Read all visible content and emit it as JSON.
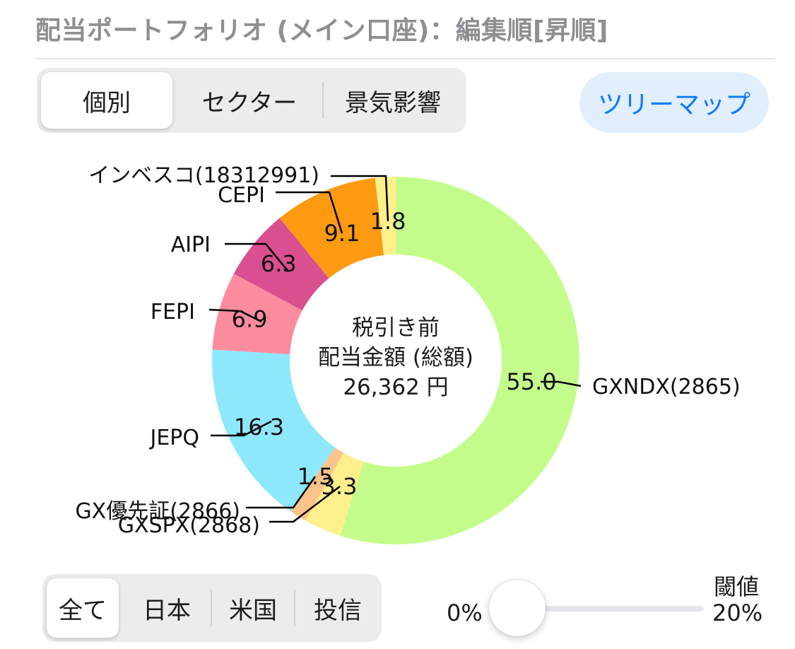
{
  "header": {
    "title": "配当ポートフォリオ (メイン口座)：編集順[昇順]"
  },
  "view_tabs": [
    {
      "label": "個別",
      "selected": true
    },
    {
      "label": "セクター",
      "selected": false
    },
    {
      "label": "景気影響",
      "selected": false
    }
  ],
  "treemap_button": {
    "label": "ツリーマップ"
  },
  "center_label": {
    "line1": "税引き前",
    "line2": "配当金額 (総額)",
    "line3": "26,362 円"
  },
  "chart_data": {
    "type": "pie",
    "donut": true,
    "start": "top, clockwise",
    "slices": [
      {
        "label": "GXNDX(2865)",
        "value": 55.0,
        "value_text": "55.0",
        "color": "#c4fc8c"
      },
      {
        "label": "GXSPX(2868)",
        "value": 3.3,
        "value_text": "3.3",
        "color": "#fdf08c"
      },
      {
        "label": "GX優先証(2866)",
        "value": 1.5,
        "value_text": "1.5",
        "color": "#fcc48a"
      },
      {
        "label": "JEPQ",
        "value": 16.3,
        "value_text": "16.3",
        "color": "#8ee8fc"
      },
      {
        "label": "FEPI",
        "value": 6.9,
        "value_text": "6.9",
        "color": "#fc8c9e"
      },
      {
        "label": "AIPI",
        "value": 6.3,
        "value_text": "6.3",
        "color": "#da4f8f"
      },
      {
        "label": "CEPI",
        "value": 9.1,
        "value_text": "9.1",
        "color": "#fc9a12"
      },
      {
        "label": "インベスコ(18312991)",
        "value": 1.8,
        "value_text": "1.8",
        "color": "#fdf08c"
      }
    ]
  },
  "region_tabs": [
    {
      "label": "全て",
      "selected": true
    },
    {
      "label": "日本",
      "selected": false
    },
    {
      "label": "米国",
      "selected": false
    },
    {
      "label": "投信",
      "selected": false
    }
  ],
  "threshold_slider": {
    "label": "閾値",
    "min_label": "0%",
    "max_label": "20%",
    "value_fraction": 0
  }
}
